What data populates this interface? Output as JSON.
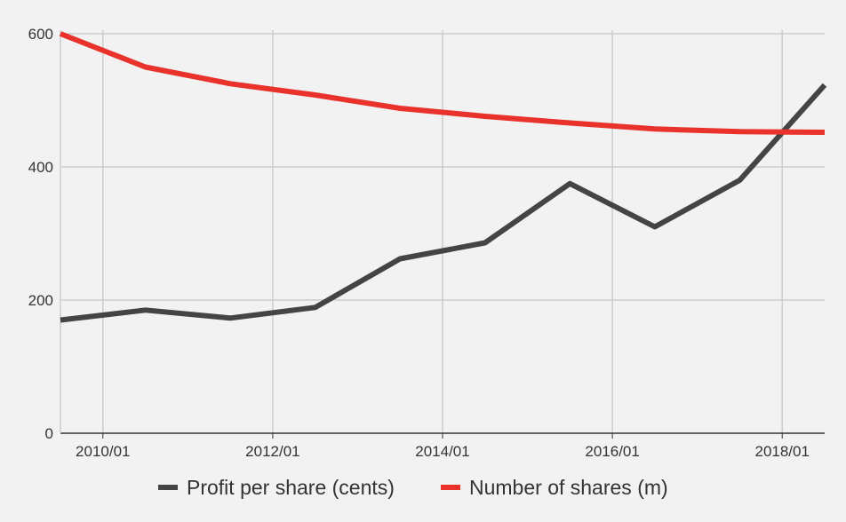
{
  "chart_data": {
    "type": "line",
    "x": [
      "2009/07",
      "2010/07",
      "2011/07",
      "2012/07",
      "2013/07",
      "2014/07",
      "2015/07",
      "2016/07",
      "2017/07",
      "2018/07"
    ],
    "x_tick_labels": [
      "2010/01",
      "2012/01",
      "2014/01",
      "2016/01",
      "2018/01"
    ],
    "ylim": [
      0,
      600
    ],
    "y_tick_labels": [
      "0",
      "200",
      "400",
      "600"
    ],
    "y_ticks": [
      0,
      200,
      400,
      600
    ],
    "grid": true,
    "legend_position": "bottom",
    "series": [
      {
        "name": "Profit per share (cents)",
        "color": "#444444",
        "values": [
          170,
          185,
          173,
          189,
          262,
          286,
          375,
          310,
          380,
          523
        ]
      },
      {
        "name": "Number of shares (m)",
        "color": "#e8322b",
        "values": [
          600,
          550,
          525,
          508,
          488,
          476,
          466,
          457,
          453,
          452
        ]
      }
    ]
  }
}
